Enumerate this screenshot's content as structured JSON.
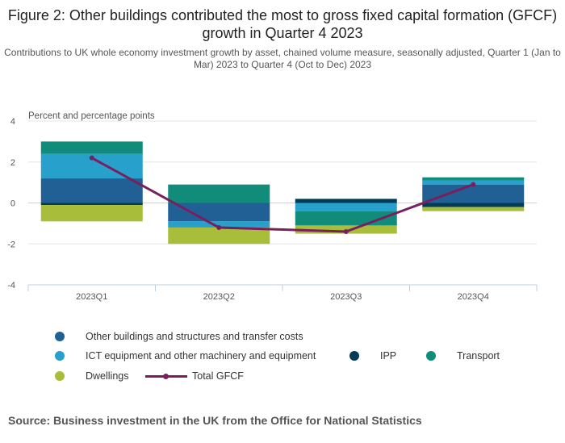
{
  "title": "Figure 2: Other buildings contributed the most to gross fixed capital formation (GFCF) growth in Quarter 4 2023",
  "subtitle": "Contributions to UK whole economy investment growth by asset, chained volume measure, seasonally adjusted, Quarter 1 (Jan to Mar) 2023 to Quarter 4 (Oct to Dec) 2023",
  "source": "Source: Business investment in the UK from the Office for National Statistics",
  "chart_data": {
    "type": "bar",
    "stacked": true,
    "ylabel": "Percent and percentage points",
    "ylim": [
      -4,
      4
    ],
    "yticks": [
      "4",
      "2",
      "0",
      "-2",
      "-4"
    ],
    "categories": [
      "2023Q1",
      "2023Q2",
      "2023Q3",
      "2023Q4"
    ],
    "series": [
      {
        "name": "Other buildings and structures and transfer costs",
        "color": "#206095",
        "values": [
          1.2,
          -0.9,
          0.0,
          0.9
        ]
      },
      {
        "name": "ICT equipment and other machinery and equipment",
        "color": "#27a0cc",
        "values": [
          1.2,
          -0.3,
          -0.4,
          0.2
        ]
      },
      {
        "name": "IPP",
        "color": "#003c57",
        "values": [
          -0.1,
          0.0,
          0.2,
          -0.2
        ]
      },
      {
        "name": "Transport",
        "color": "#118c7b",
        "values": [
          0.6,
          0.9,
          -0.7,
          0.15
        ]
      },
      {
        "name": "Dwellings",
        "color": "#a8bd3a",
        "values": [
          -0.8,
          -0.8,
          -0.4,
          -0.2
        ]
      }
    ],
    "line": {
      "name": "Total GFCF",
      "color": "#7a1f5e",
      "values": [
        2.2,
        -1.2,
        -1.4,
        0.9
      ]
    },
    "grid": true,
    "legend_position": "bottom"
  }
}
